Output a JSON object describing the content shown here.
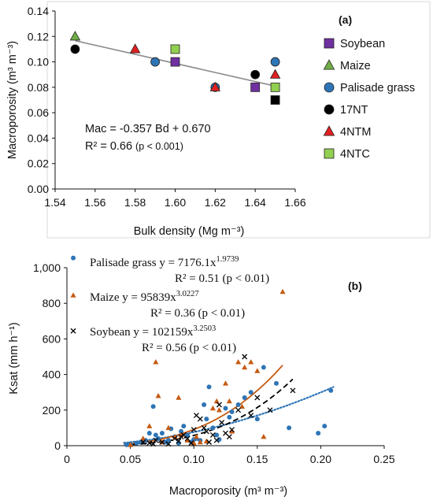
{
  "chart_data": [
    {
      "type": "scatter",
      "panel_label": "(a)",
      "xlabel": "Bulk density (Mg m⁻³)",
      "ylabel": "Macroporosity (m³ m⁻³)",
      "xlim": [
        1.54,
        1.66
      ],
      "ylim": [
        0,
        0.14
      ],
      "x_ticks": [
        "1.54",
        "1.56",
        "1.58",
        "1.60",
        "1.62",
        "1.64",
        "1.66"
      ],
      "y_ticks": [
        "0.00",
        "0.02",
        "0.04",
        "0.06",
        "0.08",
        "0.10",
        "0.12",
        "0.14"
      ],
      "grid": false,
      "legend_position": "right",
      "series": [
        {
          "name": "Soybean",
          "marker": "square",
          "color": "#7030A0",
          "points": [
            [
              1.6,
              0.1
            ],
            [
              1.64,
              0.08
            ]
          ]
        },
        {
          "name": "Maize",
          "marker": "triangle",
          "color": "#70AD47",
          "points": [
            [
              1.55,
              0.12
            ]
          ]
        },
        {
          "name": "Palisade grass",
          "marker": "circle",
          "color": "#2E75B6",
          "points": [
            [
              1.59,
              0.1
            ],
            [
              1.62,
              0.08
            ],
            [
              1.65,
              0.1
            ]
          ]
        },
        {
          "name": "17NT",
          "marker": "circle",
          "color": "#000000",
          "points": [
            [
              1.55,
              0.11
            ],
            [
              1.64,
              0.09
            ]
          ]
        },
        {
          "name": "4NTM",
          "marker": "triangle",
          "color": "#E02020",
          "points": [
            [
              1.58,
              0.11
            ],
            [
              1.62,
              0.08
            ],
            [
              1.65,
              0.09
            ]
          ]
        },
        {
          "name": "4NTC",
          "marker": "square",
          "color": "#92D050",
          "points": [
            [
              1.6,
              0.11
            ],
            [
              1.65,
              0.08
            ]
          ]
        },
        {
          "name": "",
          "marker": "square",
          "color": "#000000",
          "points": [
            [
              1.65,
              0.07
            ]
          ]
        }
      ],
      "trendline": {
        "slope": -0.357,
        "intercept": 0.67,
        "x_range": [
          1.55,
          1.65
        ],
        "color": "#8C8C8C"
      },
      "annotation": {
        "equation": "Mac = -0.357 Bd + 0.670",
        "r2_main": "R² = 0.66",
        "r2_p": "(p < 0.001)"
      }
    },
    {
      "type": "scatter",
      "panel_label": "(b)",
      "xlabel": "Macroporosity (m³ m⁻³)",
      "ylabel": "Ksat (mm h⁻¹)",
      "xlim": [
        0,
        0.25
      ],
      "ylim": [
        0,
        1000
      ],
      "x_ticks": [
        "0",
        "0.05",
        "0.10",
        "0.15",
        "0.20",
        "0.25"
      ],
      "y_ticks": [
        "0",
        "200",
        "400",
        "600",
        "800",
        "1,000"
      ],
      "grid": false,
      "series": [
        {
          "name": "Palisade grass",
          "marker": "circle",
          "color": "#2E75B6",
          "points": [
            [
              0.005,
              1055
            ],
            [
              0.047,
              5
            ],
            [
              0.05,
              10
            ],
            [
              0.055,
              15
            ],
            [
              0.058,
              20
            ],
            [
              0.062,
              30
            ],
            [
              0.065,
              70
            ],
            [
              0.068,
              220
            ],
            [
              0.07,
              60
            ],
            [
              0.072,
              40
            ],
            [
              0.075,
              70
            ],
            [
              0.078,
              20
            ],
            [
              0.08,
              30
            ],
            [
              0.082,
              95
            ],
            [
              0.085,
              50
            ],
            [
              0.088,
              15
            ],
            [
              0.09,
              80
            ],
            [
              0.092,
              110
            ],
            [
              0.095,
              60
            ],
            [
              0.098,
              20
            ],
            [
              0.1,
              35
            ],
            [
              0.102,
              40
            ],
            [
              0.105,
              30
            ],
            [
              0.108,
              230
            ],
            [
              0.11,
              150
            ],
            [
              0.112,
              330
            ],
            [
              0.115,
              100
            ],
            [
              0.118,
              60
            ],
            [
              0.12,
              35
            ],
            [
              0.125,
              210
            ],
            [
              0.128,
              160
            ],
            [
              0.13,
              190
            ],
            [
              0.135,
              230
            ],
            [
              0.14,
              270
            ],
            [
              0.145,
              300
            ],
            [
              0.15,
              150
            ],
            [
              0.155,
              440
            ],
            [
              0.165,
              350
            ],
            [
              0.175,
              100
            ],
            [
              0.198,
              70
            ],
            [
              0.203,
              110
            ],
            [
              0.208,
              310
            ]
          ],
          "fit": {
            "a": 7176.1,
            "b": 1.9739,
            "x_range": [
              0.045,
              0.21
            ],
            "style": "dotted"
          }
        },
        {
          "name": "Maize",
          "marker": "triangle",
          "color": "#C55A11",
          "points": [
            [
              0.005,
              845
            ],
            [
              0.05,
              5
            ],
            [
              0.06,
              40
            ],
            [
              0.065,
              110
            ],
            [
              0.07,
              470
            ],
            [
              0.072,
              280
            ],
            [
              0.075,
              20
            ],
            [
              0.08,
              100
            ],
            [
              0.085,
              50
            ],
            [
              0.088,
              270
            ],
            [
              0.09,
              60
            ],
            [
              0.095,
              30
            ],
            [
              0.1,
              15
            ],
            [
              0.102,
              50
            ],
            [
              0.105,
              20
            ],
            [
              0.11,
              25
            ],
            [
              0.115,
              210
            ],
            [
              0.118,
              250
            ],
            [
              0.12,
              200
            ],
            [
              0.125,
              350
            ],
            [
              0.128,
              250
            ],
            [
              0.13,
              80
            ],
            [
              0.135,
              470
            ],
            [
              0.138,
              220
            ],
            [
              0.14,
              440
            ],
            [
              0.145,
              470
            ],
            [
              0.15,
              420
            ],
            [
              0.155,
              50
            ],
            [
              0.17,
              865
            ]
          ],
          "fit": {
            "a": 95839,
            "b": 3.0227,
            "x_range": [
              0.045,
              0.17
            ],
            "style": "solid"
          }
        },
        {
          "name": "Soybean",
          "marker": "x",
          "color": "#000000",
          "points": [
            [
              0.005,
              645
            ],
            [
              0.06,
              20
            ],
            [
              0.065,
              15
            ],
            [
              0.068,
              10
            ],
            [
              0.07,
              30
            ],
            [
              0.075,
              20
            ],
            [
              0.08,
              10
            ],
            [
              0.085,
              40
            ],
            [
              0.088,
              25
            ],
            [
              0.09,
              50
            ],
            [
              0.092,
              60
            ],
            [
              0.095,
              40
            ],
            [
              0.098,
              15
            ],
            [
              0.1,
              90
            ],
            [
              0.102,
              170
            ],
            [
              0.105,
              150
            ],
            [
              0.108,
              100
            ],
            [
              0.11,
              80
            ],
            [
              0.112,
              20
            ],
            [
              0.115,
              60
            ],
            [
              0.118,
              30
            ],
            [
              0.12,
              230
            ],
            [
              0.122,
              130
            ],
            [
              0.125,
              70
            ],
            [
              0.128,
              50
            ],
            [
              0.13,
              90
            ],
            [
              0.135,
              200
            ],
            [
              0.14,
              500
            ],
            [
              0.145,
              170
            ],
            [
              0.15,
              270
            ],
            [
              0.16,
              200
            ],
            [
              0.178,
              310
            ]
          ],
          "fit": {
            "a": 102159,
            "b": 3.2503,
            "x_range": [
              0.045,
              0.178
            ],
            "style": "dashed"
          }
        }
      ],
      "annotations": [
        {
          "label": "Palisade grass y = 7176.1x",
          "exp": "1.9739",
          "r2": "R² = 0.51 (p < 0.01)"
        },
        {
          "label": "Maize y = 95839x",
          "exp": "3.0227",
          "r2": "R² = 0.36 (p < 0.01)"
        },
        {
          "label": "Soybean y = 102159x",
          "exp": "3.2503",
          "r2": "R² = 0.56 (p < 0.01)"
        }
      ]
    }
  ]
}
